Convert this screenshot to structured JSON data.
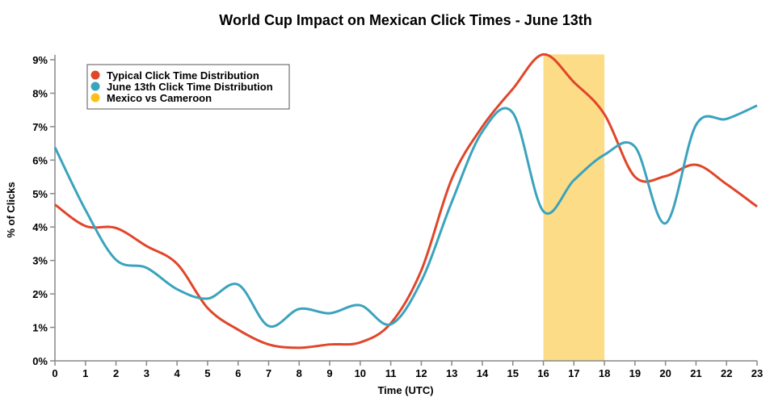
{
  "chart_data": {
    "type": "line",
    "title": "World Cup Impact on Mexican Click Times - June 13th",
    "xlabel": "Time (UTC)",
    "ylabel": "% of Clicks",
    "x": [
      0,
      1,
      2,
      3,
      4,
      5,
      6,
      7,
      8,
      9,
      10,
      11,
      12,
      13,
      14,
      15,
      16,
      17,
      18,
      19,
      20,
      21,
      22,
      23
    ],
    "xlim": [
      0,
      23
    ],
    "ylim": [
      0,
      9
    ],
    "y_ticks": [
      "0%",
      "1%",
      "2%",
      "3%",
      "4%",
      "5%",
      "6%",
      "7%",
      "8%",
      "9%"
    ],
    "grid": false,
    "legend_position": "top-left",
    "series": [
      {
        "name": "Typical Click Time Distribution",
        "color": "#e0462a",
        "values": [
          4.67,
          4.03,
          3.97,
          3.43,
          2.9,
          1.58,
          0.93,
          0.49,
          0.39,
          0.49,
          0.55,
          1.12,
          2.7,
          5.44,
          7.0,
          8.13,
          9.16,
          8.33,
          7.37,
          5.5,
          5.52,
          5.86,
          5.28,
          4.61
        ]
      },
      {
        "name": "June 13th Click Time Distribution",
        "color": "#3aa3bd",
        "values": [
          6.38,
          4.51,
          3.02,
          2.78,
          2.14,
          1.86,
          2.28,
          1.04,
          1.55,
          1.42,
          1.66,
          1.09,
          2.38,
          4.75,
          6.85,
          7.41,
          4.47,
          5.4,
          6.16,
          6.4,
          4.11,
          7.05,
          7.23,
          7.63
        ]
      }
    ],
    "highlight": {
      "name": "Mexico vs Cameroon",
      "color": "#fdbf1a",
      "fill": "#fcdc87",
      "x_range": [
        16,
        18
      ]
    }
  }
}
